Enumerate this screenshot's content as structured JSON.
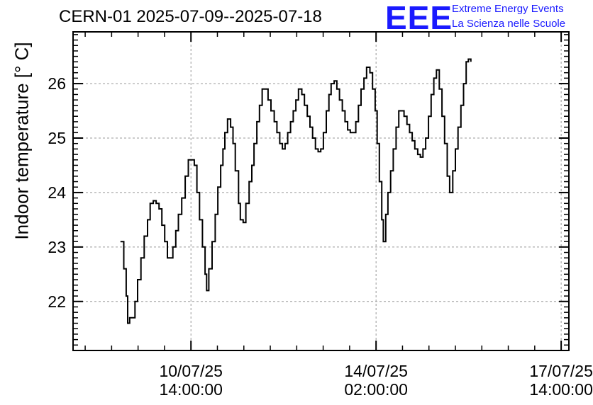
{
  "title": "CERN-01 2025-07-09--2025-07-18",
  "logo": {
    "text": "EEE",
    "line1": "Extreme Energy Events",
    "line2": "La Scienza nelle Scuole",
    "color": "#1a1aff"
  },
  "chart_data": {
    "type": "line",
    "title": "CERN-01 2025-07-09--2025-07-18",
    "ylabel": "Indoor temperature [° C]",
    "xlabel": "",
    "x_unit": "hours",
    "xlim": [
      -15.5,
      209.5
    ],
    "ylim": [
      21.1,
      26.95
    ],
    "grid": true,
    "y_ticks": [
      22,
      23,
      24,
      25,
      26
    ],
    "x_ticks": [
      {
        "t": 38,
        "date": "10/07/25",
        "time": "14:00:00"
      },
      {
        "t": 122,
        "date": "14/07/25",
        "time": "02:00:00"
      },
      {
        "t": 206,
        "date": "17/07/25",
        "time": "14:00:00"
      }
    ],
    "series": [
      {
        "points": [
          [
            6.0,
            23.1
          ],
          [
            7.5,
            22.6
          ],
          [
            8.6,
            22.1
          ],
          [
            9.3,
            21.6
          ],
          [
            10.2,
            21.7
          ],
          [
            11.4,
            21.7
          ],
          [
            12.6,
            22.0
          ],
          [
            13.8,
            22.4
          ],
          [
            15.3,
            22.8
          ],
          [
            16.8,
            23.2
          ],
          [
            18.3,
            23.5
          ],
          [
            19.5,
            23.8
          ],
          [
            20.9,
            23.85
          ],
          [
            22.2,
            23.8
          ],
          [
            23.5,
            23.7
          ],
          [
            24.8,
            23.4
          ],
          [
            26.1,
            23.1
          ],
          [
            27.3,
            22.8
          ],
          [
            28.6,
            22.8
          ],
          [
            29.8,
            23.0
          ],
          [
            31.1,
            23.3
          ],
          [
            32.3,
            23.6
          ],
          [
            33.8,
            23.9
          ],
          [
            35.4,
            24.3
          ],
          [
            36.8,
            24.6
          ],
          [
            38.0,
            24.6
          ],
          [
            39.5,
            24.5
          ],
          [
            40.7,
            24.0
          ],
          [
            41.9,
            23.5
          ],
          [
            43.2,
            23.0
          ],
          [
            44.4,
            22.5
          ],
          [
            45.1,
            22.2
          ],
          [
            46.1,
            22.6
          ],
          [
            47.6,
            23.1
          ],
          [
            49.0,
            23.6
          ],
          [
            50.2,
            24.1
          ],
          [
            51.5,
            24.5
          ],
          [
            52.5,
            24.8
          ],
          [
            53.4,
            25.1
          ],
          [
            54.6,
            25.35
          ],
          [
            56.0,
            25.2
          ],
          [
            57.1,
            24.9
          ],
          [
            58.1,
            24.4
          ],
          [
            59.6,
            23.8
          ],
          [
            60.4,
            23.5
          ],
          [
            61.7,
            23.45
          ],
          [
            62.9,
            23.8
          ],
          [
            64.4,
            24.2
          ],
          [
            65.6,
            24.5
          ],
          [
            66.6,
            24.9
          ],
          [
            67.9,
            25.3
          ],
          [
            69.1,
            25.6
          ],
          [
            70.3,
            25.9
          ],
          [
            71.8,
            25.9
          ],
          [
            73.0,
            25.7
          ],
          [
            74.3,
            25.5
          ],
          [
            75.8,
            25.3
          ],
          [
            77.0,
            25.1
          ],
          [
            78.3,
            24.9
          ],
          [
            79.5,
            24.8
          ],
          [
            80.7,
            24.9
          ],
          [
            81.9,
            25.1
          ],
          [
            83.2,
            25.3
          ],
          [
            84.4,
            25.5
          ],
          [
            85.6,
            25.7
          ],
          [
            86.8,
            25.9
          ],
          [
            88.3,
            25.8
          ],
          [
            89.5,
            25.6
          ],
          [
            90.8,
            25.4
          ],
          [
            92.0,
            25.2
          ],
          [
            93.2,
            25.0
          ],
          [
            94.5,
            24.8
          ],
          [
            95.7,
            24.75
          ],
          [
            96.9,
            24.8
          ],
          [
            98.1,
            25.1
          ],
          [
            99.4,
            25.5
          ],
          [
            100.6,
            25.8
          ],
          [
            101.6,
            26.0
          ],
          [
            103.0,
            26.05
          ],
          [
            104.2,
            25.9
          ],
          [
            105.4,
            25.7
          ],
          [
            106.7,
            25.5
          ],
          [
            107.9,
            25.3
          ],
          [
            109.1,
            25.15
          ],
          [
            110.3,
            25.1
          ],
          [
            111.6,
            25.1
          ],
          [
            112.8,
            25.3
          ],
          [
            114.0,
            25.6
          ],
          [
            115.2,
            25.9
          ],
          [
            116.5,
            26.1
          ],
          [
            117.7,
            26.3
          ],
          [
            119.2,
            26.2
          ],
          [
            120.4,
            25.9
          ],
          [
            121.6,
            25.5
          ],
          [
            122.5,
            24.9
          ],
          [
            123.5,
            24.2
          ],
          [
            124.6,
            23.5
          ],
          [
            125.3,
            23.1
          ],
          [
            126.4,
            23.6
          ],
          [
            127.4,
            24.0
          ],
          [
            128.6,
            24.4
          ],
          [
            129.8,
            24.8
          ],
          [
            131.1,
            25.2
          ],
          [
            132.3,
            25.5
          ],
          [
            133.5,
            25.5
          ],
          [
            134.7,
            25.4
          ],
          [
            136.0,
            25.25
          ],
          [
            137.2,
            25.1
          ],
          [
            138.4,
            24.95
          ],
          [
            139.6,
            24.8
          ],
          [
            140.9,
            24.7
          ],
          [
            142.1,
            24.65
          ],
          [
            143.3,
            24.8
          ],
          [
            144.5,
            25.0
          ],
          [
            145.8,
            25.4
          ],
          [
            147.0,
            25.8
          ],
          [
            148.2,
            26.1
          ],
          [
            149.4,
            26.25
          ],
          [
            150.7,
            25.9
          ],
          [
            151.9,
            25.4
          ],
          [
            153.1,
            24.9
          ],
          [
            154.3,
            24.3
          ],
          [
            155.4,
            24.0
          ],
          [
            156.8,
            24.4
          ],
          [
            158.0,
            24.8
          ],
          [
            159.2,
            25.2
          ],
          [
            160.5,
            25.6
          ],
          [
            161.7,
            26.0
          ],
          [
            162.9,
            26.4
          ],
          [
            163.9,
            26.45
          ],
          [
            165.0,
            26.4
          ]
        ]
      }
    ]
  }
}
